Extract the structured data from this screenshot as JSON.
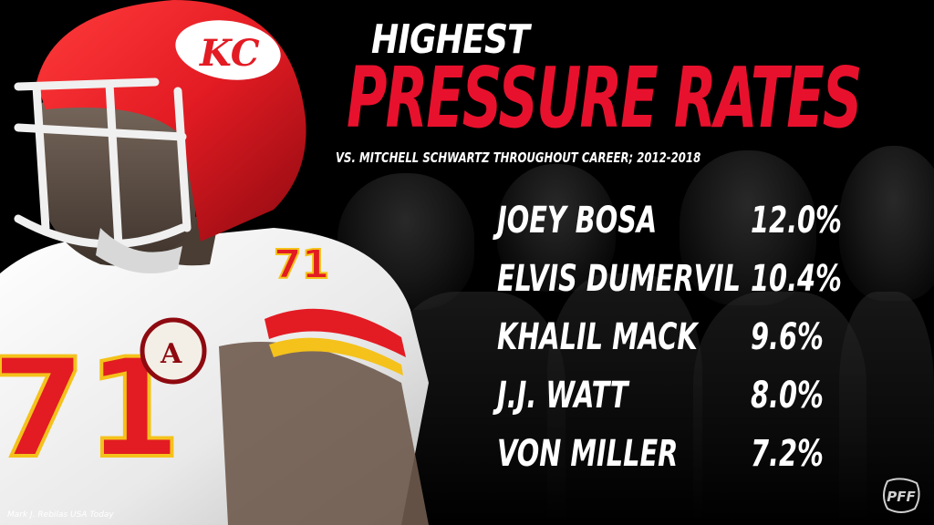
{
  "title_line1": "HIGHEST",
  "title_line2": "PRESSURE RATES",
  "subtitle": "VS. MITCHELL SCHWARTZ THROUGHOUT CAREER; 2012-2018",
  "players": [
    {
      "name": "JOEY BOSA",
      "rate": "12.0%"
    },
    {
      "name": "ELVIS DUMERVIL",
      "rate": "10.4%"
    },
    {
      "name": "KHALIL MACK",
      "rate": "9.6%"
    },
    {
      "name": "J.J. WATT",
      "rate": "8.0%"
    },
    {
      "name": "VON MILLER",
      "rate": "7.2%"
    }
  ],
  "photo_credit": "Mark J. Rebilas USA Today",
  "logo": "PFF",
  "featured_jersey_number": "71",
  "helmet_logo": "KC",
  "colors": {
    "accent": "#e8112d",
    "helmet_red": "#e31b23",
    "jersey_white": "#f2f2f2",
    "background": "#000000"
  }
}
